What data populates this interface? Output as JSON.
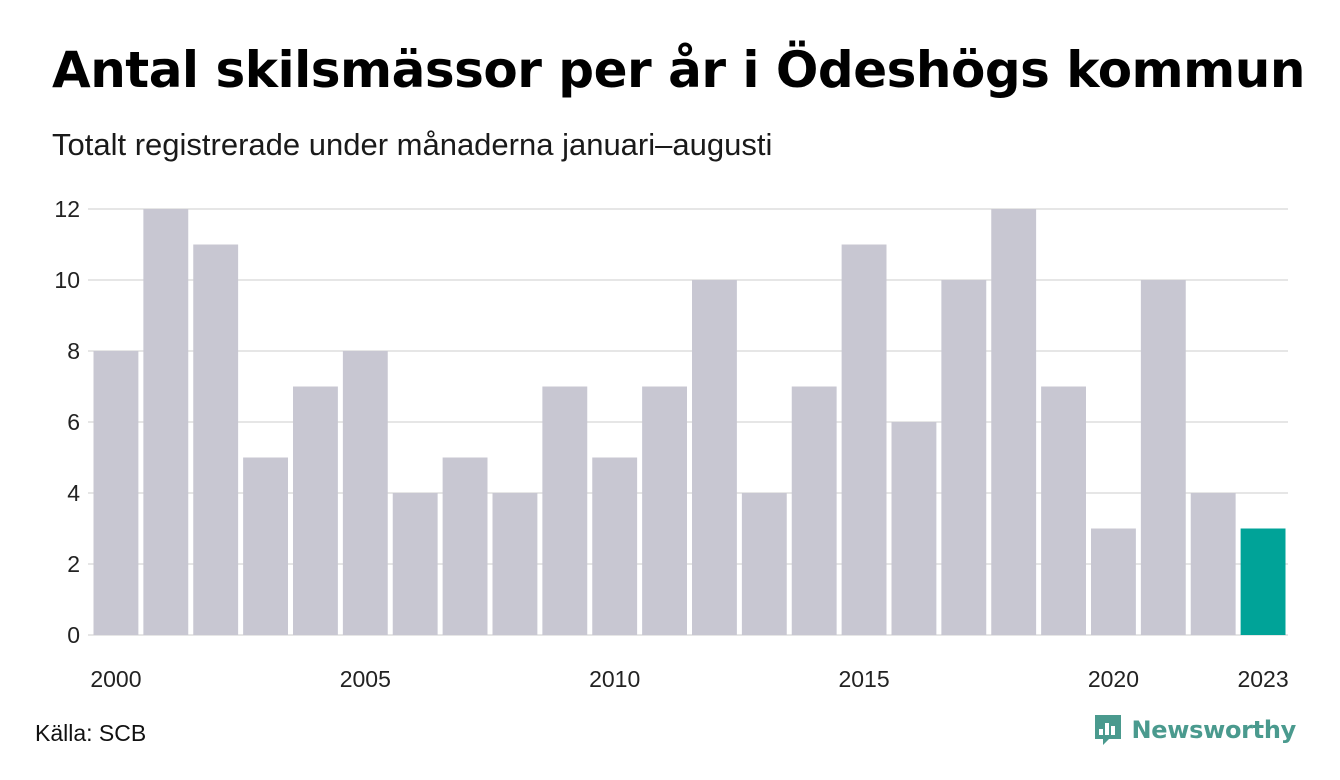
{
  "title": "Antal skilsmässor per år i Ödeshögs kommun",
  "subtitle": "Totalt registrerade under månaderna januari–augusti",
  "source": "Källa: SCB",
  "brand": {
    "name": "Newsworthy",
    "icon": "newsworthy-chart-logo-icon",
    "color": "#4a9a8e"
  },
  "colors": {
    "bar": "#c8c7d2",
    "highlight": "#00a398",
    "grid": "#e6e6e6",
    "text": "#222222"
  },
  "chart_data": {
    "type": "bar",
    "categories": [
      "2000",
      "2001",
      "2002",
      "2003",
      "2004",
      "2005",
      "2006",
      "2007",
      "2008",
      "2009",
      "2010",
      "2011",
      "2012",
      "2013",
      "2014",
      "2015",
      "2016",
      "2017",
      "2018",
      "2019",
      "2020",
      "2021",
      "2022",
      "2023"
    ],
    "values": [
      8,
      12,
      11,
      5,
      7,
      8,
      4,
      5,
      4,
      7,
      5,
      7,
      10,
      4,
      7,
      11,
      6,
      10,
      12,
      7,
      3,
      10,
      4,
      3
    ],
    "highlight_category": "2023",
    "x_tick_labels": [
      "2000",
      "2005",
      "2010",
      "2015",
      "2020",
      "2023"
    ],
    "y_ticks": [
      0,
      2,
      4,
      6,
      8,
      10,
      12
    ],
    "ylim": [
      0,
      12
    ],
    "grid": true,
    "legend": "none",
    "xlabel": "",
    "ylabel": ""
  }
}
